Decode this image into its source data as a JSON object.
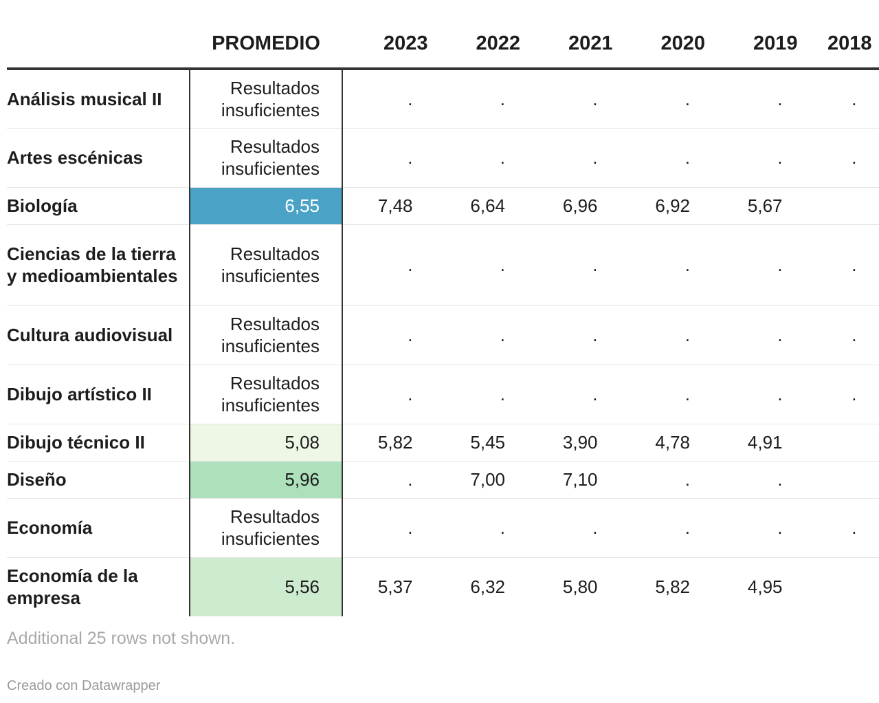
{
  "table": {
    "columns": [
      "",
      "PROMEDIO",
      "2023",
      "2022",
      "2021",
      "2020",
      "2019",
      "2018"
    ],
    "rows": [
      {
        "subject": "Análisis musical II",
        "promedio": "Resultados insuficientes",
        "promedio_value": null,
        "years": [
          ".",
          ".",
          ".",
          ".",
          ".",
          "."
        ]
      },
      {
        "subject": "Artes escénicas",
        "promedio": "Resultados insuficientes",
        "promedio_value": null,
        "years": [
          ".",
          ".",
          ".",
          ".",
          ".",
          "."
        ]
      },
      {
        "subject": "Biología",
        "promedio": "6,55",
        "promedio_value": 6.55,
        "years": [
          "7,48",
          "6,64",
          "6,96",
          "6,92",
          "5,67",
          ""
        ]
      },
      {
        "subject": "Ciencias de la tierra y medioambientales",
        "promedio": "Resultados insuficientes",
        "promedio_value": null,
        "years": [
          ".",
          ".",
          ".",
          ".",
          ".",
          "."
        ]
      },
      {
        "subject": "Cultura audiovisual",
        "promedio": "Resultados insuficientes",
        "promedio_value": null,
        "years": [
          ".",
          ".",
          ".",
          ".",
          ".",
          "."
        ]
      },
      {
        "subject": "Dibujo artístico II",
        "promedio": "Resultados insuficientes",
        "promedio_value": null,
        "years": [
          ".",
          ".",
          ".",
          ".",
          ".",
          "."
        ]
      },
      {
        "subject": "Dibujo técnico II",
        "promedio": "5,08",
        "promedio_value": 5.08,
        "years": [
          "5,82",
          "5,45",
          "3,90",
          "4,78",
          "4,91",
          ""
        ]
      },
      {
        "subject": "Diseño",
        "promedio": "5,96",
        "promedio_value": 5.96,
        "years": [
          ".",
          "7,00",
          "7,10",
          ".",
          ".",
          ""
        ]
      },
      {
        "subject": "Economía",
        "promedio": "Resultados insuficientes",
        "promedio_value": null,
        "years": [
          ".",
          ".",
          ".",
          ".",
          ".",
          "."
        ]
      },
      {
        "subject": "Economía de la empresa",
        "promedio": "5,56",
        "promedio_value": 5.56,
        "years": [
          "5,37",
          "6,32",
          "5,80",
          "5,82",
          "4,95",
          ""
        ]
      }
    ]
  },
  "colors": {
    "text": "#1d1d1d",
    "rule": "#333333",
    "row_divider": "#e6e6e6",
    "prom_6_55": "#4aa3c7",
    "prom_5_08": "#eef7e6",
    "prom_5_96": "#ade0bb",
    "prom_5_56": "#cdebcf"
  },
  "notes": "Additional 25 rows not shown.",
  "credit": "Creado con Datawrapper",
  "chart_data": {
    "type": "table",
    "title": "",
    "columns": [
      "PROMEDIO",
      "2023",
      "2022",
      "2021",
      "2020",
      "2019",
      "2018"
    ],
    "categories": [
      "Análisis musical II",
      "Artes escénicas",
      "Biología",
      "Ciencias de la tierra y medioambientales",
      "Cultura audiovisual",
      "Dibujo artístico II",
      "Dibujo técnico II",
      "Diseño",
      "Economía",
      "Economía de la empresa"
    ],
    "series": [
      {
        "name": "PROMEDIO",
        "values": [
          null,
          null,
          6.55,
          null,
          null,
          null,
          5.08,
          5.96,
          null,
          5.56
        ]
      },
      {
        "name": "2023",
        "values": [
          null,
          null,
          7.48,
          null,
          null,
          null,
          5.82,
          null,
          null,
          5.37
        ]
      },
      {
        "name": "2022",
        "values": [
          null,
          null,
          6.64,
          null,
          null,
          null,
          5.45,
          7.0,
          null,
          6.32
        ]
      },
      {
        "name": "2021",
        "values": [
          null,
          null,
          6.96,
          null,
          null,
          null,
          3.9,
          7.1,
          null,
          5.8
        ]
      },
      {
        "name": "2020",
        "values": [
          null,
          null,
          6.92,
          null,
          null,
          null,
          4.78,
          null,
          null,
          5.82
        ]
      },
      {
        "name": "2019",
        "values": [
          null,
          null,
          5.67,
          null,
          null,
          null,
          4.91,
          null,
          null,
          4.95
        ]
      }
    ]
  }
}
